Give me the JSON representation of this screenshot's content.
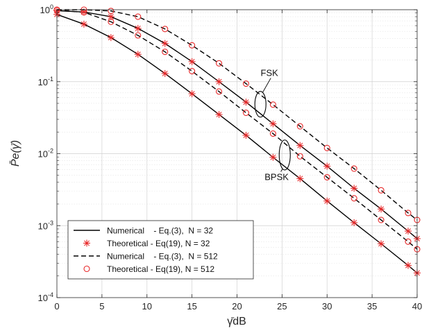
{
  "chart_data": {
    "type": "line",
    "xlabel": "γ̄dB",
    "ylabel": "P̄e(γ̄)",
    "yscale": "log",
    "xlim": [
      0,
      40
    ],
    "ylim": [
      0.0001,
      1
    ],
    "grid": true,
    "legend_position": "bottom-left",
    "x_ticks": [
      "0",
      "5",
      "10",
      "15",
      "20",
      "25",
      "30",
      "35",
      "40"
    ],
    "y_ticks": [
      {
        "base": "10",
        "exp": "0",
        "value": 1
      },
      {
        "base": "10",
        "exp": "-1",
        "value": 0.1
      },
      {
        "base": "10",
        "exp": "-2",
        "value": 0.01
      },
      {
        "base": "10",
        "exp": "-3",
        "value": 0.001
      },
      {
        "base": "10",
        "exp": "-4",
        "value": 0.0001
      }
    ],
    "annotations": [
      {
        "text": "FSK",
        "x": 23.6,
        "y": 0.12
      },
      {
        "text": "BPSK",
        "x": 24.4,
        "y": 0.0043
      }
    ],
    "colors": {
      "line": "#000000",
      "marker": "#e8292a",
      "grid": "#d7d7d7",
      "axis": "#262626"
    },
    "series": [
      {
        "name": "Numerical    - Eq.(3),  N = 32",
        "line": "solid",
        "marker": "none",
        "group": "BPSK",
        "x": [
          0,
          3,
          6,
          9,
          12,
          15,
          18,
          21,
          24,
          27,
          30,
          33,
          36,
          39,
          40
        ],
        "y": [
          0.86,
          0.63,
          0.41,
          0.24,
          0.13,
          0.068,
          0.035,
          0.018,
          0.0089,
          0.0045,
          0.0022,
          0.0011,
          0.00056,
          0.00028,
          0.00022
        ]
      },
      {
        "name": "Theoretical - Eq(19), N = 32",
        "line": "none",
        "marker": "asterisk",
        "group": "BPSK",
        "x": [
          0,
          3,
          6,
          9,
          12,
          15,
          18,
          21,
          24,
          27,
          30,
          33,
          36,
          39,
          40
        ],
        "y": [
          0.86,
          0.63,
          0.41,
          0.24,
          0.13,
          0.068,
          0.035,
          0.018,
          0.0089,
          0.0045,
          0.0022,
          0.0011,
          0.00056,
          0.00028,
          0.00022
        ]
      },
      {
        "name": "Numerical    - Eq.(3),  N = 512",
        "line": "dashed",
        "marker": "none",
        "group": "BPSK",
        "x": [
          0,
          3,
          6,
          9,
          12,
          15,
          18,
          21,
          24,
          27,
          30,
          33,
          36,
          39,
          40
        ],
        "y": [
          0.99,
          0.92,
          0.68,
          0.44,
          0.26,
          0.14,
          0.073,
          0.037,
          0.019,
          0.0092,
          0.0047,
          0.0024,
          0.0012,
          0.0006,
          0.00047
        ]
      },
      {
        "name": "Theoretical - Eq(19), N = 512",
        "line": "none",
        "marker": "circle",
        "group": "BPSK",
        "x": [
          0,
          3,
          6,
          9,
          12,
          15,
          18,
          21,
          24,
          27,
          30,
          33,
          36,
          39,
          40
        ],
        "y": [
          0.99,
          0.92,
          0.68,
          0.44,
          0.26,
          0.14,
          0.073,
          0.037,
          0.019,
          0.0092,
          0.0047,
          0.0024,
          0.0012,
          0.0006,
          0.00047
        ]
      },
      {
        "name": "",
        "line": "solid",
        "marker": "asterisk",
        "group": "FSK",
        "x": [
          0,
          3,
          6,
          9,
          12,
          15,
          18,
          21,
          24,
          27,
          30,
          33,
          36,
          39,
          40
        ],
        "y": [
          0.97,
          0.93,
          0.8,
          0.55,
          0.34,
          0.19,
          0.1,
          0.052,
          0.026,
          0.013,
          0.0067,
          0.0033,
          0.0017,
          0.00084,
          0.00066
        ]
      },
      {
        "name": "",
        "line": "dashed",
        "marker": "circle",
        "group": "FSK",
        "x": [
          0,
          3,
          6,
          9,
          12,
          15,
          18,
          21,
          24,
          27,
          30,
          33,
          36,
          39,
          40
        ],
        "y": [
          1.0,
          1.0,
          0.96,
          0.8,
          0.54,
          0.32,
          0.18,
          0.094,
          0.048,
          0.024,
          0.012,
          0.0062,
          0.0031,
          0.0015,
          0.0012
        ]
      }
    ]
  }
}
